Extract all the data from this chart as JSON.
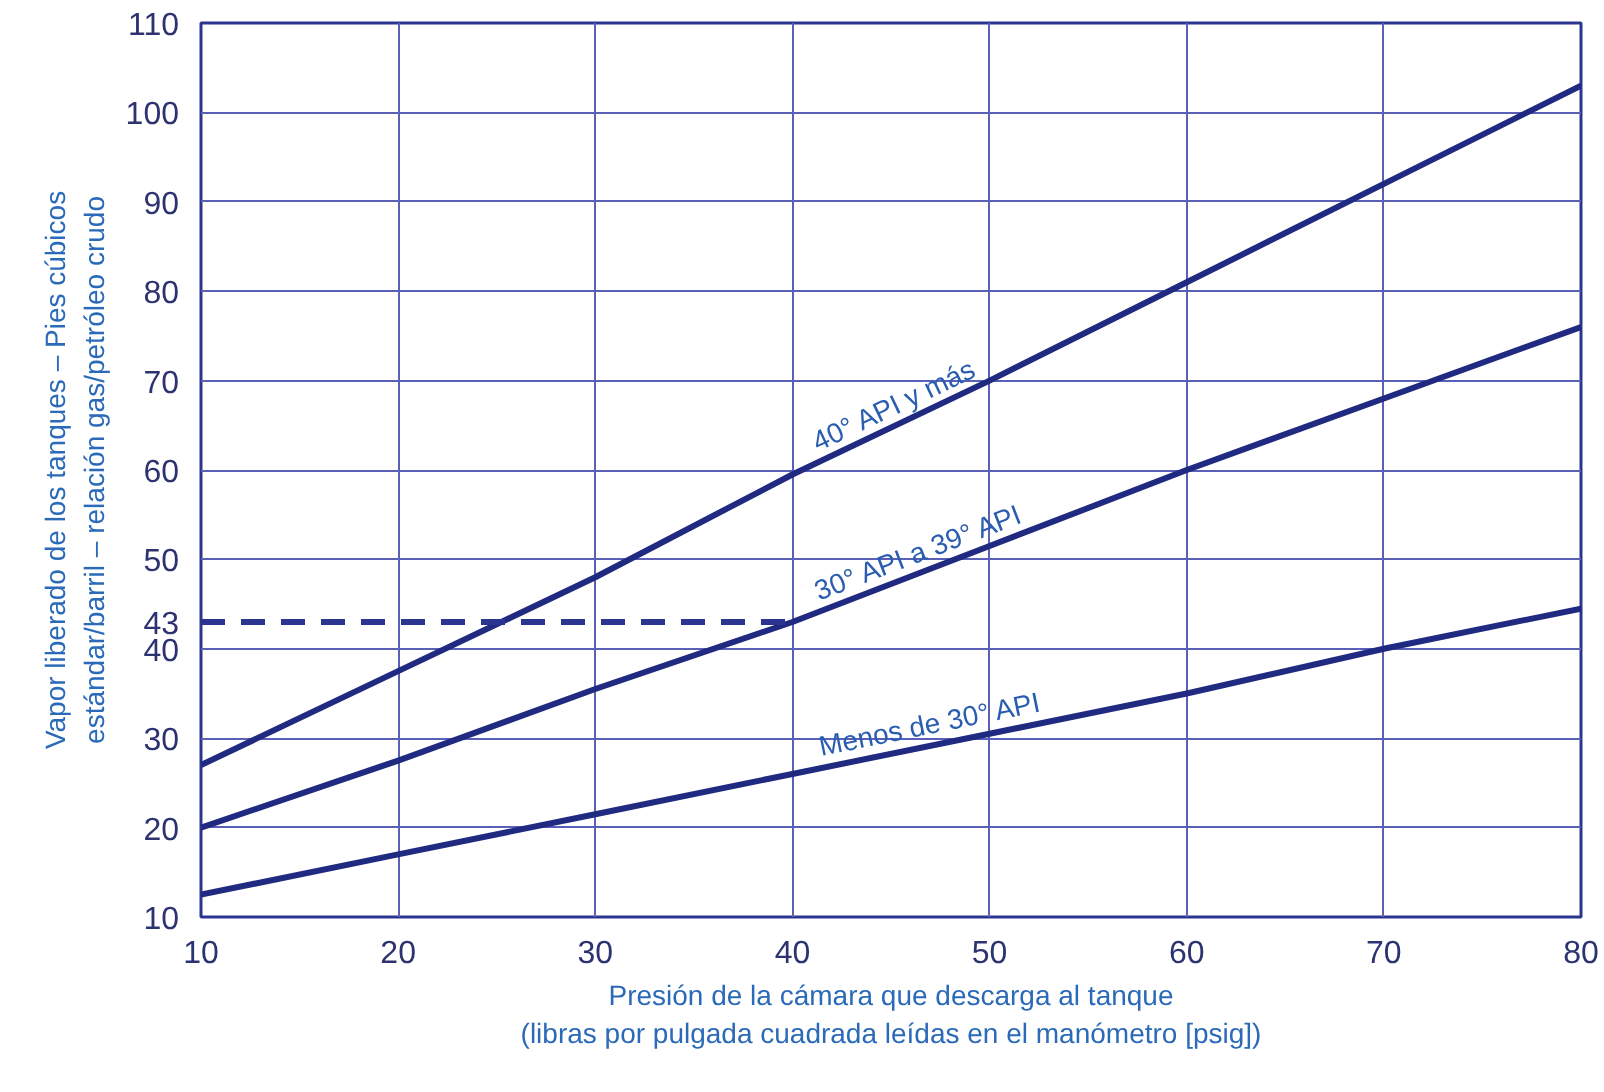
{
  "chart_data": {
    "type": "line",
    "xlabel": "Presión de la cámara que descarga al tanque\n(libras por pulgada cuadrada leídas en el manómetro [psig])",
    "ylabel": "Vapor liberado de los tanques – Pies cúbicos\nestándar/barril – relación gas/petróleo crudo",
    "x": [
      10,
      20,
      30,
      40,
      50,
      60,
      70,
      80
    ],
    "series": [
      {
        "name": "40° API y más",
        "color": "#1f2a80",
        "values": [
          27,
          37.5,
          48,
          59.5,
          70,
          81,
          92,
          103
        ]
      },
      {
        "name": "30° API a 39° API",
        "color": "#1f2a80",
        "values": [
          20,
          27.5,
          35.5,
          43,
          51.5,
          60,
          68,
          76
        ]
      },
      {
        "name": "Menos de 30° API",
        "color": "#1f2a80",
        "values": [
          12.5,
          17,
          21.5,
          26,
          30.5,
          35,
          40,
          44.5
        ]
      },
      {
        "color": "#2a3590",
        "x": [
          10,
          40
        ],
        "values": [
          43,
          43
        ],
        "line_style": "dashed"
      }
    ],
    "xlim": [
      10,
      80
    ],
    "xticks": [
      10,
      20,
      30,
      40,
      50,
      60,
      70,
      80
    ],
    "ylim": [
      10,
      110
    ],
    "yticks": [
      10,
      20,
      30,
      40,
      {
        "value": 43,
        "label": "43"
      },
      50,
      60,
      70,
      80,
      90,
      100,
      110
    ],
    "grid": true,
    "marker": "none",
    "line_style": "solid"
  }
}
